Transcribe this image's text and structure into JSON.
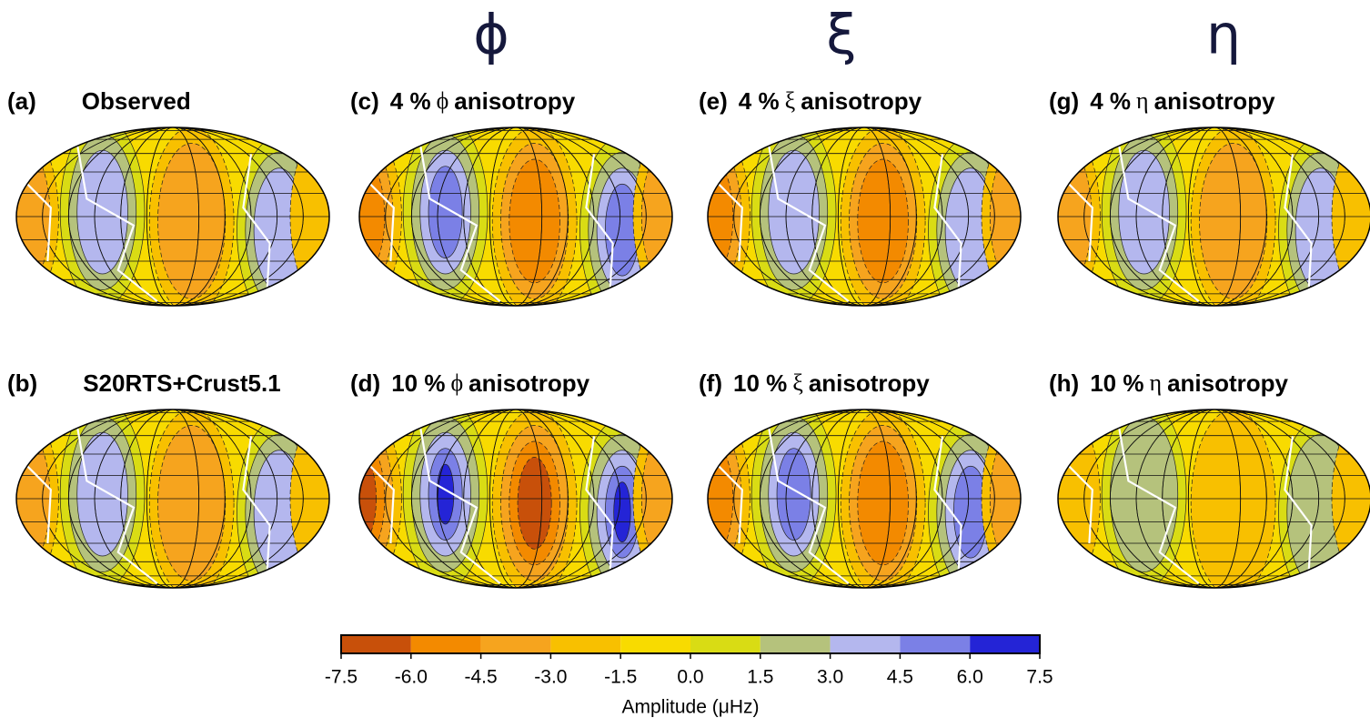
{
  "headers": [
    "ϕ",
    "ξ",
    "η"
  ],
  "panels": [
    {
      "label": "(a)",
      "title": [
        "Observed"
      ]
    },
    {
      "label": "(b)",
      "title": [
        "S20RTS+Crust5.1"
      ]
    },
    {
      "label": "(c)",
      "title": [
        "4 %",
        "ϕ",
        "anisotropy"
      ]
    },
    {
      "label": "(d)",
      "title": [
        "10 %",
        "ϕ",
        "anisotropy"
      ]
    },
    {
      "label": "(e)",
      "title": [
        "4 %",
        "ξ",
        "anisotropy"
      ]
    },
    {
      "label": "(f)",
      "title": [
        "10 %",
        "ξ",
        "anisotropy"
      ]
    },
    {
      "label": "(g)",
      "title": [
        "4 %",
        "η",
        "anisotropy"
      ]
    },
    {
      "label": "(h)",
      "title": [
        "10 %",
        "η",
        "anisotropy"
      ]
    }
  ],
  "colorbar": {
    "label": "Amplitude (μHz)",
    "ticks": [
      -7.5,
      {
        "value": -6,
        "label": "-6.0"
      },
      -4.5,
      {
        "value": -3,
        "label": "-3.0"
      },
      -1.5,
      {
        "value": 0,
        "label": "0.0"
      },
      1.5,
      {
        "value": 3,
        "label": "3.0"
      },
      4.5,
      {
        "value": 6,
        "label": "6.0"
      },
      7.5
    ],
    "colors": [
      "#c8500a",
      "#f38a00",
      "#f6a41e",
      "#f8c000",
      "#f8db00",
      "#d9dc14",
      "#b5c27c",
      "#b4b7ee",
      "#7b80e6",
      "#2424d6"
    ]
  }
}
